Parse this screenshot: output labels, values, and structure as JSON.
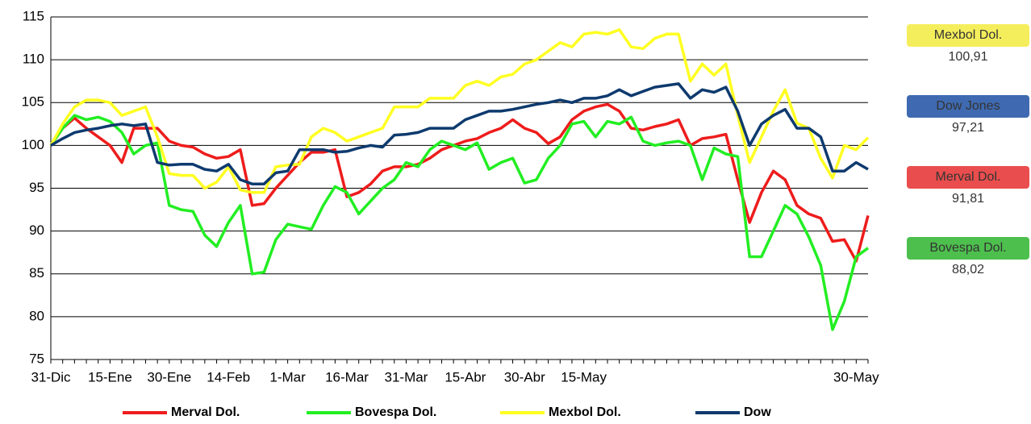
{
  "chart_data": {
    "type": "line",
    "categories": [
      "31-Dic",
      null,
      null,
      null,
      null,
      "15-Ene",
      null,
      null,
      null,
      null,
      "30-Ene",
      null,
      null,
      null,
      null,
      "14-Feb",
      null,
      null,
      null,
      null,
      "1-Mar",
      null,
      null,
      null,
      null,
      "16-Mar",
      null,
      null,
      null,
      null,
      "31-Mar",
      null,
      null,
      null,
      null,
      "15-Abr",
      null,
      null,
      null,
      null,
      "30-Abr",
      null,
      null,
      null,
      null,
      "15-May",
      null,
      null,
      null,
      null,
      null,
      null,
      null,
      null,
      null,
      null,
      null,
      null,
      null,
      null,
      null,
      null,
      null,
      null,
      null,
      null,
      null,
      null,
      "30-May",
      null
    ],
    "ylim": [
      75,
      115
    ],
    "yticks": [
      75,
      80,
      85,
      90,
      95,
      100,
      105,
      110,
      115
    ],
    "grid": true,
    "series": [
      {
        "name": "Merval Dol.",
        "color": "#ee1c1c",
        "values": [
          100,
          102,
          103.2,
          102,
          101,
          100,
          98,
          102,
          102,
          102,
          100.5,
          100,
          99.8,
          99,
          98.5,
          98.7,
          99.5,
          93,
          93.2,
          95,
          96.5,
          98,
          99.2,
          99.2,
          99.5,
          94,
          94.5,
          95.5,
          97,
          97.5,
          97.5,
          97.8,
          98.5,
          99.5,
          100,
          100.5,
          100.8,
          101.5,
          102,
          103,
          102,
          101.5,
          100.2,
          101,
          103,
          104,
          104.5,
          104.8,
          104,
          102,
          101.8,
          102.2,
          102.5,
          103,
          100,
          100.8,
          101,
          101.3,
          96,
          91,
          94.5,
          97,
          96,
          93,
          92,
          91.5,
          88.8,
          89,
          86.5,
          91.81
        ]
      },
      {
        "name": "Bovespa Dol.",
        "color": "#22ee22",
        "values": [
          100,
          102,
          103.5,
          103,
          103.3,
          102.8,
          101.5,
          99,
          100,
          100.3,
          93,
          92.5,
          92.3,
          89.5,
          88.2,
          91,
          93,
          85,
          85.2,
          89,
          90.8,
          90.5,
          90.2,
          93,
          95.2,
          94.5,
          92,
          93.5,
          95,
          96,
          98,
          97.5,
          99.5,
          100.5,
          100,
          99.5,
          100.3,
          97.2,
          98,
          98.5,
          95.6,
          96,
          98.5,
          100,
          102.5,
          102.8,
          101,
          102.8,
          102.5,
          103.3,
          100.5,
          100,
          100.3,
          100.5,
          100,
          96,
          99.7,
          99,
          98.7,
          87,
          87,
          90,
          93,
          92,
          89.3,
          86,
          78.5,
          81.8,
          87,
          88.02
        ]
      },
      {
        "name": "Mexbol Dol.",
        "color": "#ffff22",
        "values": [
          100,
          102.5,
          104.5,
          105.3,
          105.3,
          105,
          103.5,
          104,
          104.5,
          101,
          96.7,
          96.5,
          96.5,
          95,
          95.7,
          97.5,
          94.8,
          94.5,
          94.5,
          97.5,
          97.7,
          97.8,
          101,
          102,
          101.5,
          100.5,
          101,
          101.5,
          102,
          104.5,
          104.5,
          104.5,
          105.5,
          105.5,
          105.5,
          107,
          107.5,
          107,
          108,
          108.3,
          109.5,
          110,
          111,
          112,
          111.5,
          113,
          113.2,
          113,
          113.5,
          111.5,
          111.3,
          112.5,
          113,
          113,
          107.5,
          109.5,
          108.2,
          109.5,
          103.5,
          98,
          101,
          104,
          106.5,
          102.6,
          102,
          98.5,
          96.2,
          100,
          99.5,
          100.91
        ]
      },
      {
        "name": "Dow",
        "color": "#0e3a6e",
        "values": [
          100,
          100.8,
          101.5,
          101.8,
          102,
          102.3,
          102.5,
          102.3,
          102.5,
          98,
          97.7,
          97.8,
          97.8,
          97.2,
          97,
          97.8,
          96,
          95.5,
          95.5,
          96.8,
          97,
          99.5,
          99.5,
          99.5,
          99.2,
          99.3,
          99.7,
          100,
          99.8,
          101.2,
          101.3,
          101.5,
          102,
          102,
          102,
          103,
          103.5,
          104,
          104,
          104.2,
          104.5,
          104.8,
          105,
          105.3,
          105,
          105.5,
          105.5,
          105.8,
          106.5,
          105.8,
          106.3,
          106.8,
          107,
          107.2,
          105.5,
          106.5,
          106.2,
          106.8,
          104,
          100,
          102.5,
          103.5,
          104.2,
          102,
          102,
          101,
          97,
          97,
          98,
          97.21
        ]
      }
    ],
    "callouts": [
      {
        "title": "Mexbol Dol.",
        "value": 100.91,
        "label": "100,91",
        "color": "#f4ec4a"
      },
      {
        "title": "Dow Jones",
        "value": 97.21,
        "label": "97,21",
        "color": "#2a5aa8"
      },
      {
        "title": "Merval Dol.",
        "value": 91.81,
        "label": "91,81",
        "color": "#e83a3a"
      },
      {
        "title": "Bovespa Dol.",
        "value": 88.02,
        "label": "88,02",
        "color": "#3ab83a"
      }
    ]
  }
}
